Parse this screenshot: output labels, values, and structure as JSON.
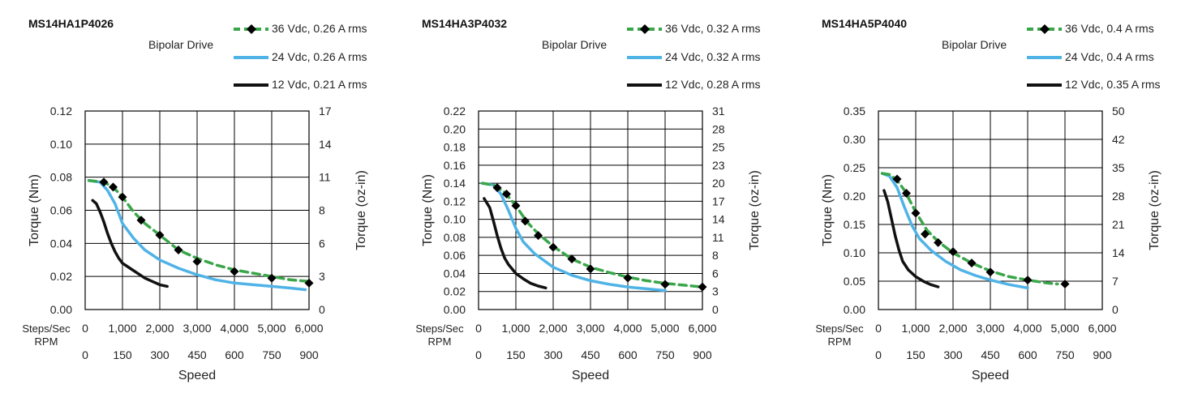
{
  "drive_label": "Bipolar Drive",
  "speed_label": "Speed",
  "steps_label": "Steps/Sec",
  "rpm_label": "RPM",
  "colors": {
    "v36": "#3aa64a",
    "v24": "#4fb3e6",
    "v12": "#111111",
    "marker": "#000000"
  },
  "chart_data": [
    {
      "type": "line",
      "title": "MS14HA1P4026",
      "xlabel": "Speed",
      "ylabel": "Torque (Nm)",
      "y2label": "Torque (oz-in)",
      "xlim": [
        0,
        6000
      ],
      "ylim": [
        0,
        0.12
      ],
      "x_ticks": [
        "0",
        "1,000",
        "2,000",
        "3,000",
        "4,000",
        "5,000",
        "6,000"
      ],
      "rpm_ticks": [
        "0",
        "150",
        "300",
        "450",
        "600",
        "750",
        "900"
      ],
      "y_ticks": [
        "0.00",
        "0.02",
        "0.04",
        "0.06",
        "0.08",
        "0.10",
        "0.12"
      ],
      "y2_ticks": [
        "0",
        "3",
        "6",
        "8",
        "11",
        "14",
        "17"
      ],
      "grid": true,
      "legend": "top-right",
      "series": [
        {
          "name": "36 Vdc, 0.26 A rms",
          "style": "dashed-diamond",
          "x": [
            100,
            500,
            750,
            1000,
            1300,
            1600,
            2000,
            2500,
            3000,
            3500,
            4000,
            4500,
            5000,
            5500,
            6000
          ],
          "y": [
            0.078,
            0.077,
            0.074,
            0.068,
            0.059,
            0.052,
            0.045,
            0.036,
            0.031,
            0.027,
            0.024,
            0.022,
            0.02,
            0.018,
            0.017
          ],
          "markers_x": [
            500,
            750,
            1000,
            1500,
            2000,
            2500,
            3000,
            4000,
            5000,
            6000
          ],
          "markers_y": [
            0.077,
            0.074,
            0.068,
            0.054,
            0.045,
            0.036,
            0.029,
            0.023,
            0.019,
            0.016
          ]
        },
        {
          "name": "24 Vdc, 0.26 A rms",
          "style": "solid",
          "x": [
            100,
            400,
            600,
            800,
            1000,
            1300,
            1600,
            2000,
            2500,
            3000,
            3500,
            4000,
            4500,
            5000,
            5500,
            5900
          ],
          "y": [
            0.078,
            0.077,
            0.072,
            0.064,
            0.052,
            0.043,
            0.036,
            0.03,
            0.025,
            0.021,
            0.018,
            0.016,
            0.015,
            0.014,
            0.013,
            0.012
          ]
        },
        {
          "name": "12 Vdc, 0.21 A rms",
          "style": "solid",
          "x": [
            200,
            300,
            400,
            500,
            600,
            700,
            800,
            900,
            1000,
            1200,
            1400,
            1600,
            1800,
            2000,
            2200
          ],
          "y": [
            0.066,
            0.064,
            0.059,
            0.053,
            0.046,
            0.04,
            0.035,
            0.031,
            0.028,
            0.025,
            0.022,
            0.019,
            0.017,
            0.015,
            0.014
          ]
        }
      ]
    },
    {
      "type": "line",
      "title": "MS14HA3P4032",
      "xlabel": "Speed",
      "ylabel": "Torque (Nm)",
      "y2label": "Torque (oz-in)",
      "xlim": [
        0,
        6000
      ],
      "ylim": [
        0,
        0.22
      ],
      "x_ticks": [
        "0",
        "1,000",
        "2,000",
        "3,000",
        "4,000",
        "5,000",
        "6,000"
      ],
      "rpm_ticks": [
        "0",
        "150",
        "300",
        "450",
        "600",
        "750",
        "900"
      ],
      "y_ticks": [
        "0.00",
        "0.02",
        "0.04",
        "0.06",
        "0.08",
        "0.10",
        "0.12",
        "0.14",
        "0.16",
        "0.18",
        "0.20",
        "0.22"
      ],
      "y2_ticks": [
        "0",
        "3",
        "6",
        "8",
        "11",
        "14",
        "17",
        "20",
        "23",
        "25",
        "28",
        "31"
      ],
      "grid": true,
      "legend": "top-right",
      "series": [
        {
          "name": "36 Vdc, 0.32 A rms",
          "style": "dashed-diamond",
          "x": [
            100,
            400,
            700,
            1000,
            1300,
            1600,
            2000,
            2500,
            3000,
            3500,
            4000,
            4500,
            5000,
            5500,
            6000
          ],
          "y": [
            0.14,
            0.138,
            0.13,
            0.115,
            0.097,
            0.084,
            0.07,
            0.056,
            0.047,
            0.041,
            0.036,
            0.032,
            0.029,
            0.027,
            0.025
          ],
          "markers_x": [
            500,
            750,
            1000,
            1250,
            1600,
            2000,
            2500,
            3000,
            4000,
            5000,
            6000
          ],
          "markers_y": [
            0.135,
            0.128,
            0.115,
            0.098,
            0.082,
            0.069,
            0.056,
            0.045,
            0.035,
            0.028,
            0.025
          ]
        },
        {
          "name": "24 Vdc, 0.32 A rms",
          "style": "solid",
          "x": [
            100,
            400,
            600,
            800,
            1000,
            1200,
            1500,
            2000,
            2500,
            3000,
            3500,
            4000,
            4500,
            5000
          ],
          "y": [
            0.14,
            0.138,
            0.128,
            0.11,
            0.09,
            0.075,
            0.062,
            0.047,
            0.038,
            0.032,
            0.028,
            0.025,
            0.023,
            0.021
          ]
        },
        {
          "name": "12 Vdc, 0.28 A rms",
          "style": "solid",
          "x": [
            150,
            300,
            400,
            500,
            600,
            700,
            800,
            900,
            1000,
            1200,
            1400,
            1600,
            1800
          ],
          "y": [
            0.123,
            0.113,
            0.098,
            0.082,
            0.068,
            0.057,
            0.05,
            0.045,
            0.04,
            0.034,
            0.029,
            0.026,
            0.024
          ]
        }
      ]
    },
    {
      "type": "line",
      "title": "MS14HA5P4040",
      "xlabel": "Speed",
      "ylabel": "Torque (Nm)",
      "y2label": "Torque (oz-in)",
      "xlim": [
        0,
        6000
      ],
      "ylim": [
        0,
        0.35
      ],
      "x_ticks": [
        "0",
        "1,000",
        "2,000",
        "3,000",
        "4,000",
        "5,000",
        "6,000"
      ],
      "rpm_ticks": [
        "0",
        "150",
        "300",
        "450",
        "600",
        "750",
        "900"
      ],
      "y_ticks": [
        "0.00",
        "0.05",
        "0.10",
        "0.15",
        "0.20",
        "0.25",
        "0.30",
        "0.35"
      ],
      "y2_ticks": [
        "0",
        "7",
        "14",
        "21",
        "28",
        "35",
        "42",
        "50"
      ],
      "grid": true,
      "legend": "top-right",
      "series": [
        {
          "name": "36 Vdc, 0.4 A rms",
          "style": "dashed-diamond",
          "x": [
            100,
            300,
            500,
            700,
            1000,
            1300,
            1600,
            2000,
            2500,
            3000,
            3500,
            4000,
            4500,
            4800
          ],
          "y": [
            0.24,
            0.238,
            0.228,
            0.21,
            0.172,
            0.14,
            0.12,
            0.1,
            0.082,
            0.068,
            0.058,
            0.052,
            0.047,
            0.045
          ],
          "markers_x": [
            500,
            750,
            1000,
            1250,
            1600,
            2000,
            2500,
            3000,
            4000,
            5000
          ],
          "markers_y": [
            0.23,
            0.205,
            0.17,
            0.133,
            0.118,
            0.102,
            0.082,
            0.066,
            0.052,
            0.045
          ]
        },
        {
          "name": "24 Vdc, 0.4 A rms",
          "style": "solid",
          "x": [
            100,
            300,
            500,
            700,
            900,
            1100,
            1400,
            1800,
            2200,
            2600,
            3000,
            3500,
            4000
          ],
          "y": [
            0.24,
            0.235,
            0.215,
            0.18,
            0.148,
            0.125,
            0.105,
            0.085,
            0.07,
            0.06,
            0.052,
            0.044,
            0.038
          ]
        },
        {
          "name": "12 Vdc, 0.35 A rms",
          "style": "solid",
          "x": [
            150,
            250,
            350,
            450,
            550,
            650,
            800,
            1000,
            1200,
            1400,
            1600
          ],
          "y": [
            0.21,
            0.19,
            0.16,
            0.13,
            0.105,
            0.085,
            0.07,
            0.058,
            0.05,
            0.044,
            0.04
          ]
        }
      ]
    }
  ]
}
